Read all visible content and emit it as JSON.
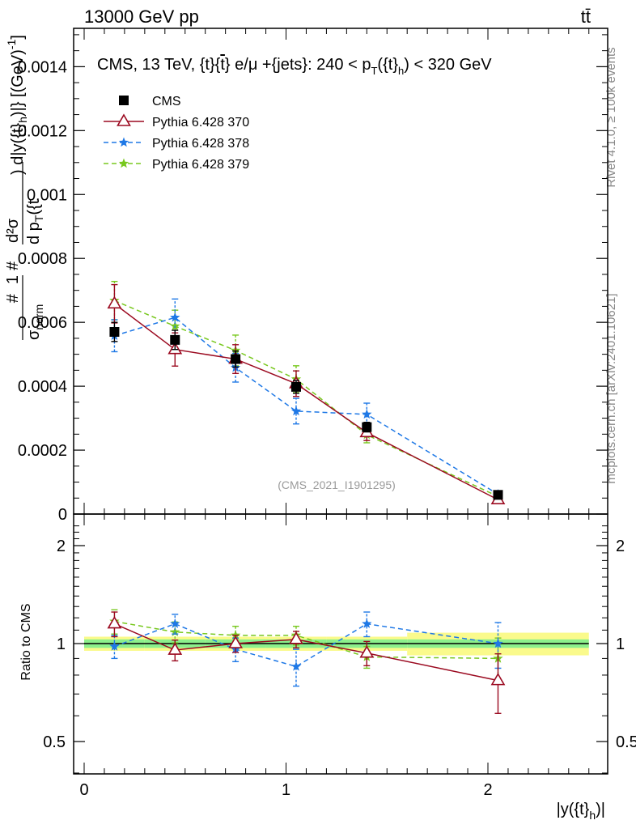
{
  "header": {
    "left": "13000 GeV pp",
    "right": "tt̄"
  },
  "side": {
    "rivet": "Rivet 4.1.0, ≥ 100k events",
    "mcplots": "mcplots.cern.ch [arXiv:2401.10621]"
  },
  "colors": {
    "cms": "#000000",
    "p370": "#9b0a20",
    "p378": "#1e78e6",
    "p379": "#78c81e",
    "band_inner": "#8cf08c",
    "band_outer": "#fafa8c"
  },
  "chart_data": [
    {
      "type": "line",
      "title": "CMS, 13 TeV, {t}{t̄} e/μ +{jets}: 240 < p_T({t}_h) < 320 GeV",
      "title_parts": {
        "prefix": "CMS, 13 TeV, {t}{",
        "tbar": "t",
        "mid": "} e/μ +{jets}: 240 <  p",
        "sub_T": "T",
        "paren_open": "({t}",
        "sub_h": "h",
        "suffix": ") < 320 GeV"
      },
      "ylabel": "#1/σ_norm #d²σ/d p_T({t}_h) d|y({t}_h)| [(GeV)^-1]",
      "ylabel_parts": {
        "hash1": "#",
        "one": "1",
        "sigma_norm": "σ",
        "norm": "norm",
        "hash2": "#",
        "d2sigma": "d²σ",
        "dpt": "d p",
        "sub_T": "T",
        "tpar": "({t",
        "tail": ") d|y({t}",
        "sub_h": "h",
        "units": ")|} [(GeV)",
        "exp": "-1",
        "close": "]"
      },
      "watermark": "(CMS_2021_I1901295)",
      "xlim": [
        -0.1,
        2.6
      ],
      "ylim": [
        0,
        0.00152
      ],
      "yticks": [
        0,
        0.0002,
        0.0004,
        0.0006,
        0.0008,
        0.001,
        0.0012,
        0.0014
      ],
      "ytick_labels": [
        "0",
        "0.0002",
        "0.0004",
        "0.0006",
        "0.0008",
        "0.001",
        "0.0012",
        "0.0014"
      ],
      "x_bins": [
        [
          0,
          0.3
        ],
        [
          0.3,
          0.6
        ],
        [
          0.6,
          0.9
        ],
        [
          0.9,
          1.2
        ],
        [
          1.2,
          1.6
        ],
        [
          1.6,
          2.5
        ]
      ],
      "x": [
        0.15,
        0.45,
        0.75,
        1.05,
        1.4,
        2.05
      ],
      "series": [
        {
          "name": "CMS",
          "key": "cms",
          "marker": "square",
          "values": [
            0.00057,
            0.000545,
            0.000485,
            0.000398,
            0.000272,
            6e-05
          ],
          "errors": [
            3e-05,
            3e-05,
            2.5e-05,
            2e-05,
            1.5e-05,
            5e-06
          ]
        },
        {
          "name": "Pythia 6.428 370",
          "key": "p370",
          "marker": "triangle",
          "style": "solid",
          "values": [
            0.000658,
            0.000515,
            0.000485,
            0.000408,
            0.000255,
            4.5e-05
          ],
          "errors": [
            6e-05,
            5.2e-05,
            4.5e-05,
            4e-05,
            2.5e-05,
            8e-06
          ]
        },
        {
          "name": "Pythia 6.428 378",
          "key": "p378",
          "marker": "star",
          "style": "dashed",
          "values": [
            0.000558,
            0.000615,
            0.000458,
            0.000322,
            0.000312,
            6.2e-05
          ],
          "errors": [
            5e-05,
            5.8e-05,
            4.5e-05,
            4e-05,
            3.5e-05,
            9e-06
          ]
        },
        {
          "name": "Pythia 6.428 379",
          "key": "p379",
          "marker": "star",
          "style": "dashed",
          "values": [
            0.000668,
            0.000588,
            0.000512,
            0.000422,
            0.000248,
            5.5e-05
          ],
          "errors": [
            6e-05,
            5e-05,
            4.8e-05,
            4.2e-05,
            2.5e-05,
            8e-06
          ]
        }
      ],
      "legend": [
        "CMS",
        "Pythia 6.428 370",
        "Pythia 6.428 378",
        "Pythia 6.428 379"
      ]
    },
    {
      "type": "line",
      "title": "Ratio to CMS",
      "ylabel": "Ratio to CMS",
      "xlabel": "|y({t}_h)|",
      "xlabel_parts": {
        "main": "|y({t}",
        "sub": "h",
        "close": ")|"
      },
      "xlim": [
        -0.1,
        2.6
      ],
      "ylim": [
        0.38,
        2.38
      ],
      "yticks": [
        0.5,
        1,
        2
      ],
      "ytick_labels": [
        "0.5",
        "1",
        "2"
      ],
      "xticks": [
        0,
        1,
        2
      ],
      "xtick_labels": [
        "0",
        "1",
        "2"
      ],
      "x_bins": [
        [
          0,
          0.3
        ],
        [
          0.3,
          0.6
        ],
        [
          0.6,
          0.9
        ],
        [
          0.9,
          1.2
        ],
        [
          1.2,
          1.6
        ],
        [
          1.6,
          2.5
        ]
      ],
      "x": [
        0.15,
        0.45,
        0.75,
        1.05,
        1.4,
        2.05
      ],
      "band_inner": [
        0.03,
        0.03,
        0.03,
        0.03,
        0.03,
        0.03
      ],
      "band_outer": [
        0.05,
        0.05,
        0.05,
        0.05,
        0.05,
        0.08
      ],
      "series": [
        {
          "name": "Pythia 6.428 370",
          "key": "p370",
          "marker": "triangle",
          "style": "solid",
          "values": [
            1.15,
            0.955,
            1.0,
            1.03,
            0.935,
            0.77
          ],
          "errors": [
            0.1,
            0.07,
            0.06,
            0.06,
            0.08,
            0.16
          ]
        },
        {
          "name": "Pythia 6.428 378",
          "key": "p378",
          "marker": "star",
          "style": "dashed",
          "values": [
            0.98,
            1.15,
            0.96,
            0.85,
            1.15,
            1.0
          ],
          "errors": [
            0.08,
            0.08,
            0.08,
            0.11,
            0.1,
            0.16
          ]
        },
        {
          "name": "Pythia 6.428 379",
          "key": "p379",
          "marker": "star",
          "style": "dashed",
          "values": [
            1.17,
            1.085,
            1.06,
            1.06,
            0.91,
            0.9
          ],
          "errors": [
            0.1,
            0.08,
            0.07,
            0.07,
            0.07,
            0.14
          ]
        }
      ]
    }
  ]
}
